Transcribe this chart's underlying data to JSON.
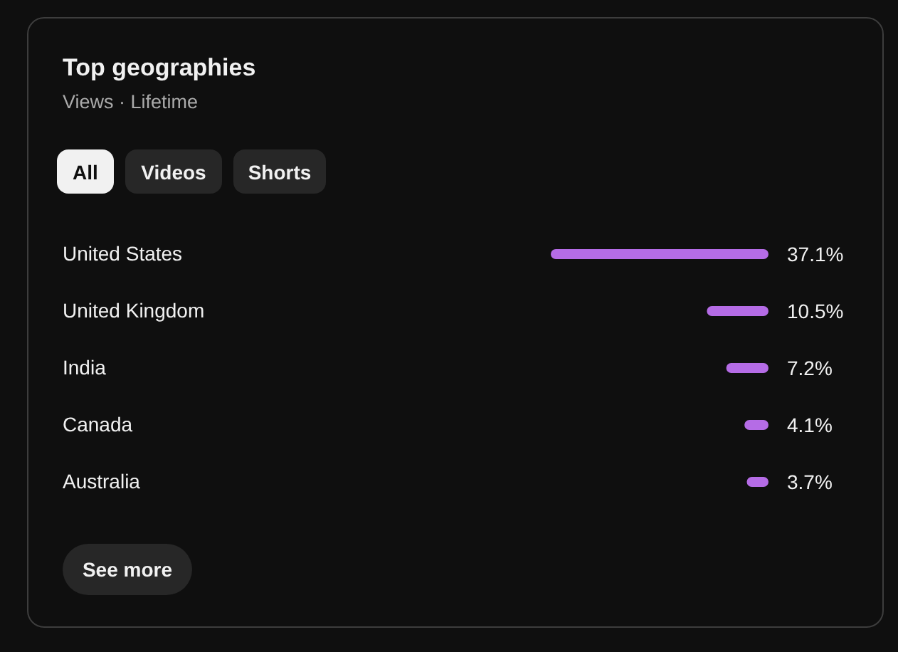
{
  "chart_data": {
    "type": "bar",
    "orientation": "horizontal",
    "title": "Top geographies",
    "subtitle": "Views · Lifetime",
    "categories": [
      "United States",
      "United Kingdom",
      "India",
      "Canada",
      "Australia"
    ],
    "values": [
      37.1,
      10.5,
      7.2,
      4.1,
      3.7
    ],
    "value_labels": [
      "37.1%",
      "10.5%",
      "7.2%",
      "4.1%",
      "3.7%"
    ],
    "color": "#b56ce6",
    "annotations": [
      "All",
      "Videos",
      "Shorts",
      "See more"
    ]
  }
}
